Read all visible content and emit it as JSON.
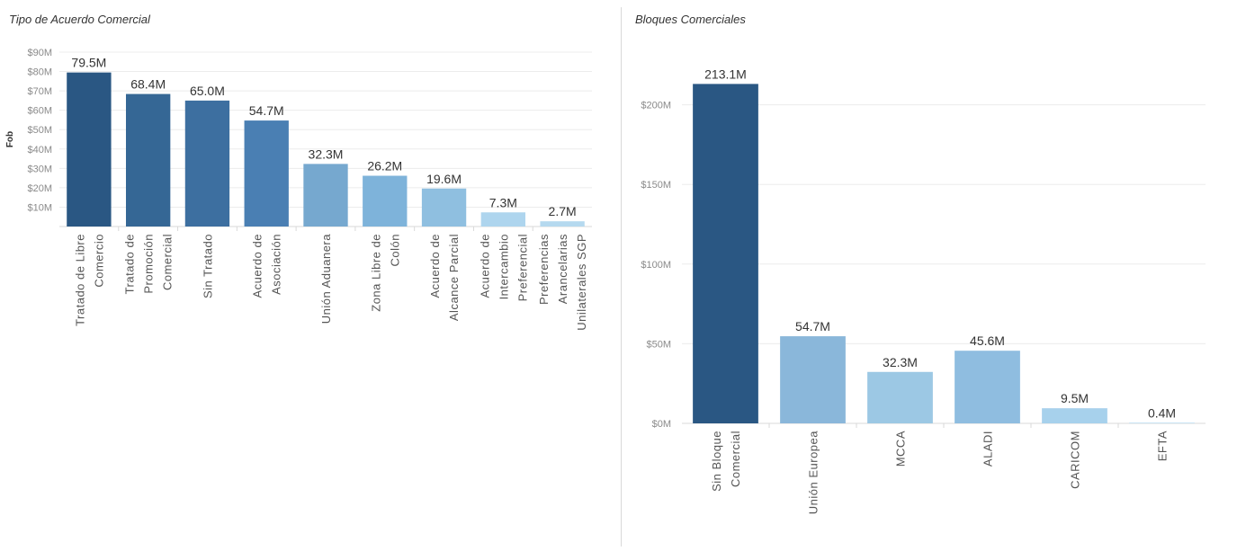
{
  "chart_data": [
    {
      "type": "bar",
      "title": "Tipo de Acuerdo Comercial",
      "ylabel": "Fob",
      "ylim": [
        0,
        90
      ],
      "yticks": [
        "$10M",
        "$20M",
        "$30M",
        "$40M",
        "$50M",
        "$60M",
        "$70M",
        "$80M",
        "$90M"
      ],
      "categories": [
        [
          "Tratado de Libre",
          "Comercio"
        ],
        [
          "Tratado de",
          "Promoción",
          "Comercial"
        ],
        [
          "Sin Tratado"
        ],
        [
          "Acuerdo de",
          "Asociación"
        ],
        [
          "Unión Aduanera"
        ],
        [
          "Zona Libre de",
          "Colón"
        ],
        [
          "Acuerdo de",
          "Alcance Parcial"
        ],
        [
          "Acuerdo de",
          "Intercambio",
          "Preferencial"
        ],
        [
          "Preferencias",
          "Arancelarias",
          "Unilaterales SGP"
        ]
      ],
      "values": [
        79.5,
        68.4,
        65.0,
        54.7,
        32.3,
        26.2,
        19.6,
        7.3,
        2.7
      ],
      "value_labels": [
        "79.5M",
        "68.4M",
        "65.0M",
        "54.7M",
        "32.3M",
        "26.2M",
        "19.6M",
        "7.3M",
        "2.7M"
      ],
      "colors": [
        "#2a5783",
        "#356795",
        "#3d6fa0",
        "#4a7fb3",
        "#76a8cf",
        "#7eb3da",
        "#8fbfe0",
        "#aed5ee",
        "#b5d9ef"
      ]
    },
    {
      "type": "bar",
      "title": "Bloques Comerciales",
      "ylim": [
        0,
        250
      ],
      "yticks": [
        "$0M",
        "$50M",
        "$100M",
        "$150M",
        "$200M"
      ],
      "categories": [
        [
          "Sin Bloque",
          "Comercial"
        ],
        [
          "Unión Europea"
        ],
        [
          "MCCA"
        ],
        [
          "ALADI"
        ],
        [
          "CARICOM"
        ],
        [
          "EFTA"
        ]
      ],
      "values": [
        213.1,
        54.7,
        32.3,
        45.6,
        9.5,
        0.4
      ],
      "value_labels": [
        "213.1M",
        "54.7M",
        "32.3M",
        "45.6M",
        "9.5M",
        "0.4M"
      ],
      "colors": [
        "#2a5783",
        "#8ab7da",
        "#9cc8e4",
        "#8fbde0",
        "#a7d1ec",
        "#b5d9ef"
      ]
    }
  ]
}
